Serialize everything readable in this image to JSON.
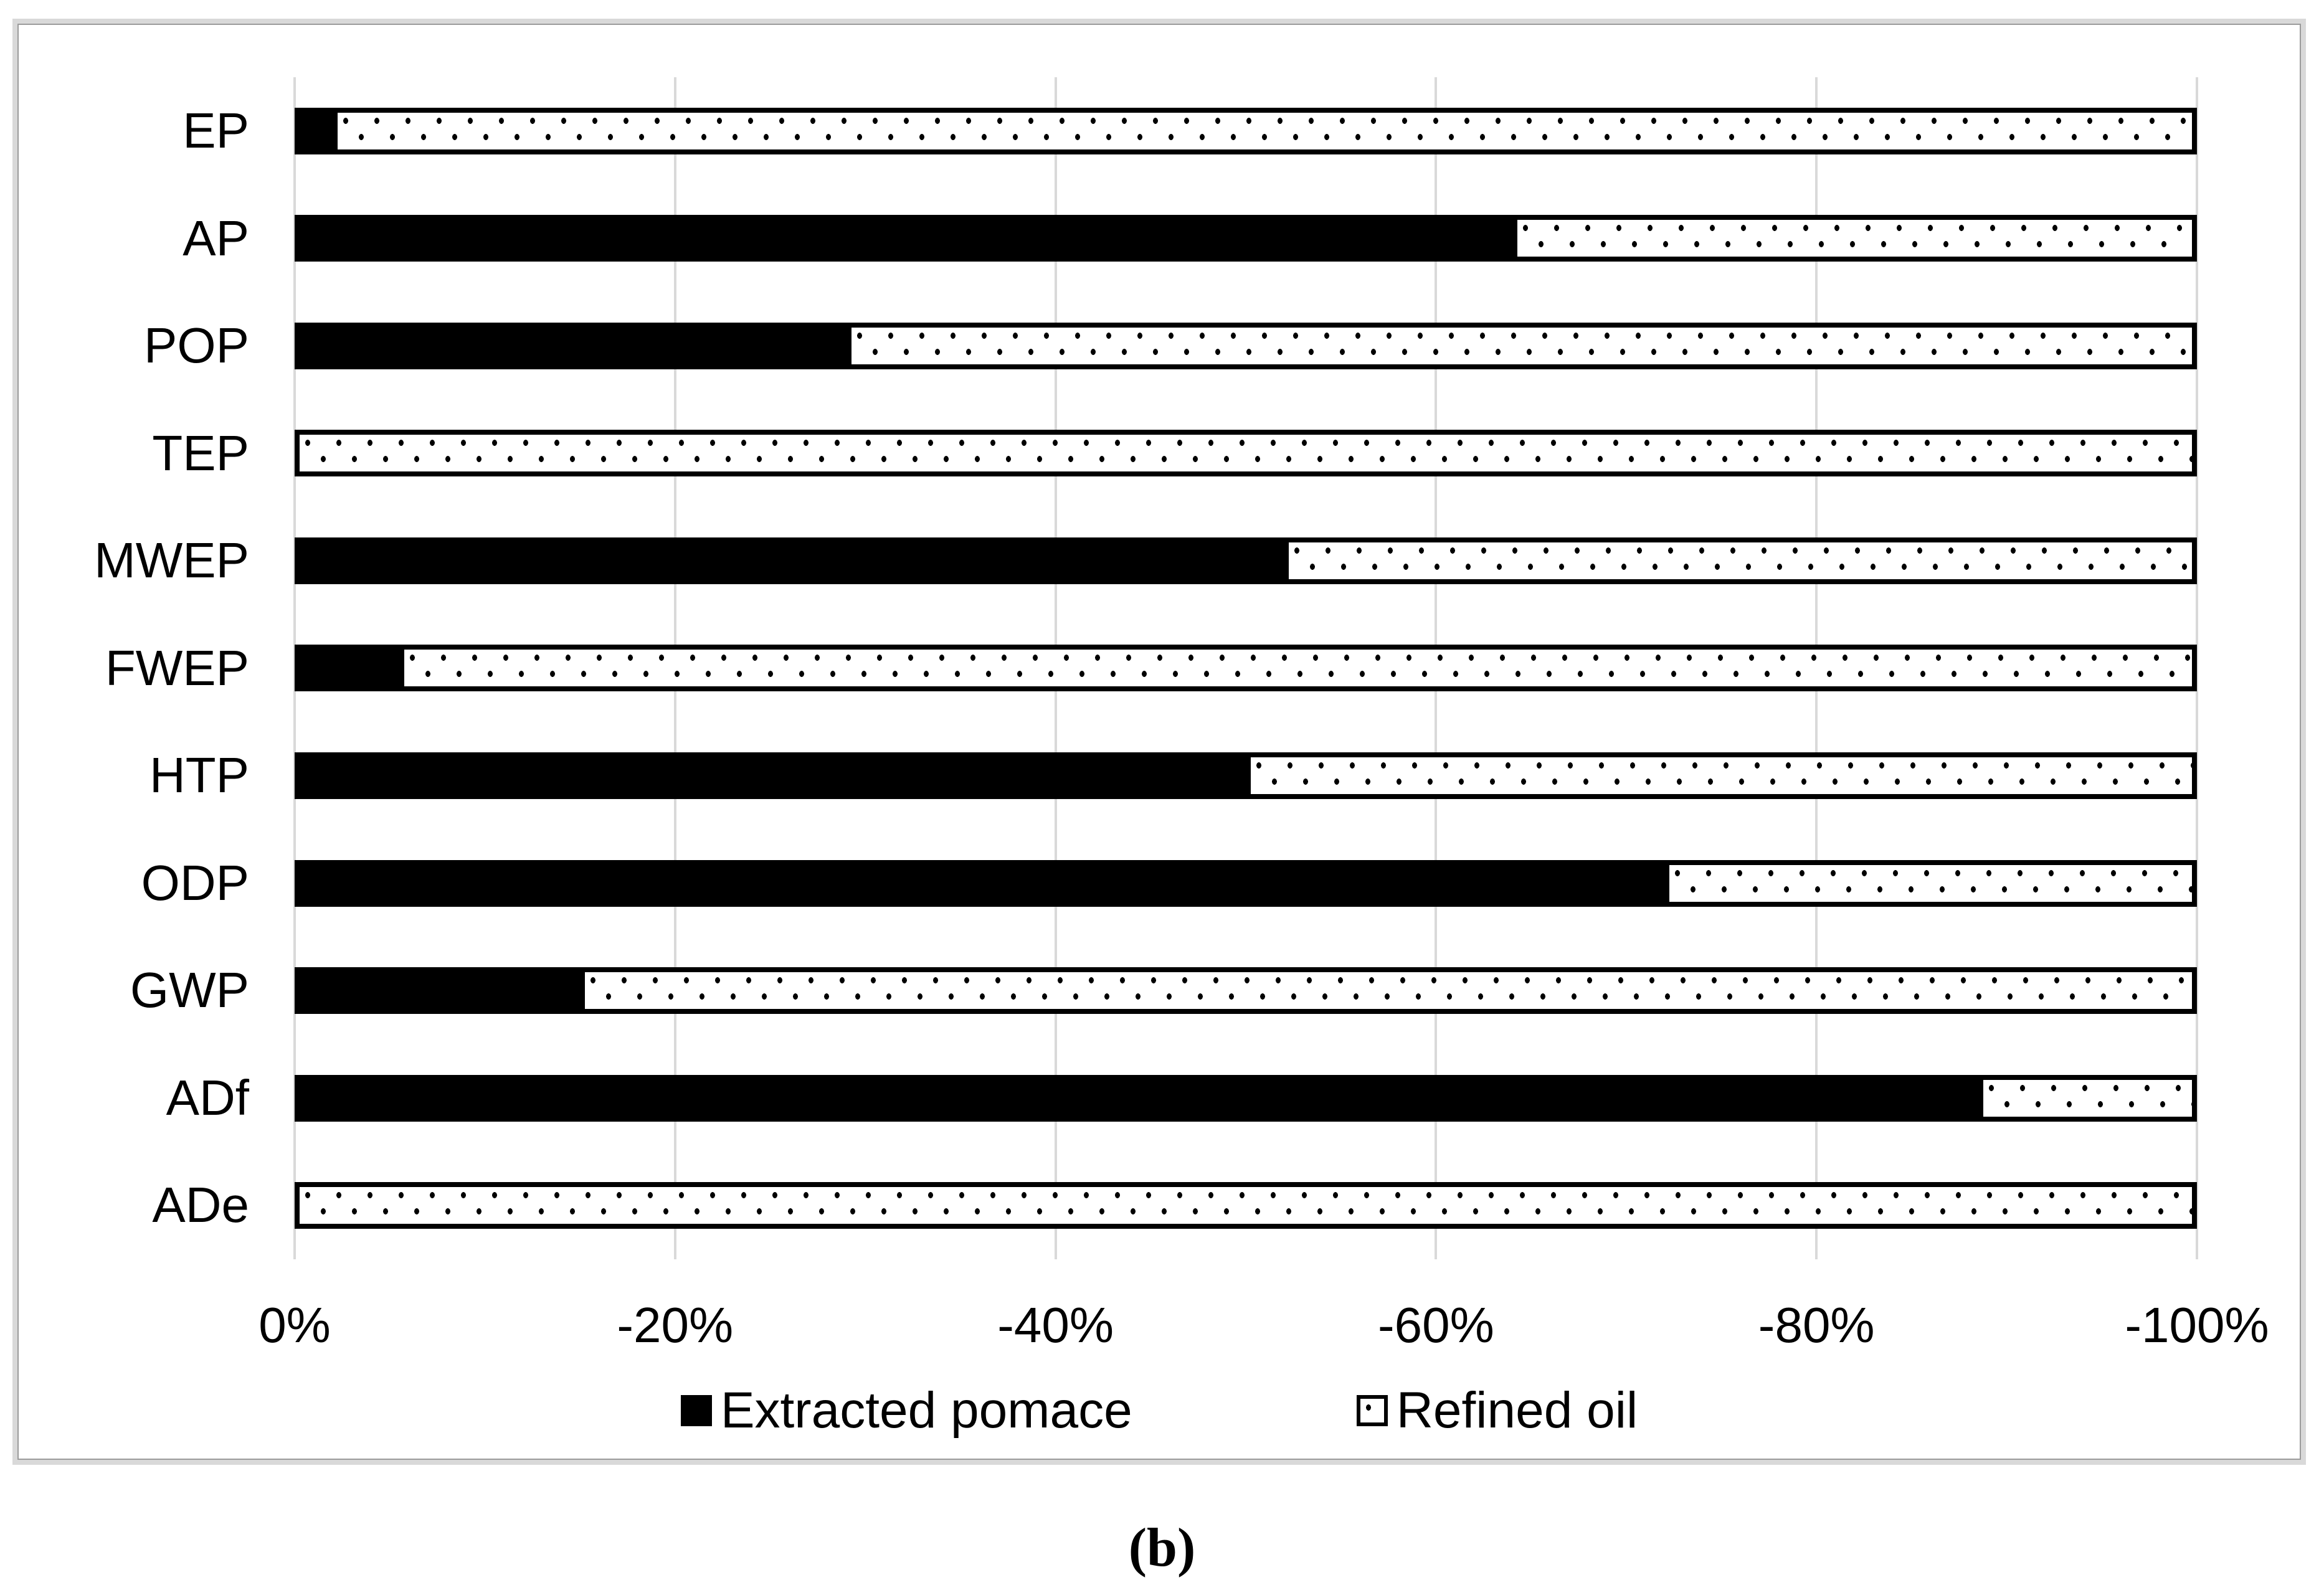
{
  "figure": {
    "caption": "(b)"
  },
  "legend": {
    "items": [
      {
        "label": "Extracted pomace",
        "swatch": "solid-black-square"
      },
      {
        "label": "Refined oil",
        "swatch": "dotted-white-square"
      }
    ]
  },
  "chart_data": {
    "type": "bar",
    "orientation": "horizontal",
    "stacked": true,
    "stacked_total_pct": 100,
    "title": "",
    "categories": [
      "EP",
      "AP",
      "POP",
      "TEP",
      "MWEP",
      "FWEP",
      "HTP",
      "ODP",
      "GWP",
      "ADf",
      "ADe"
    ],
    "series": [
      {
        "name": "Extracted pomace",
        "fill": "solid-black",
        "values_pct": [
          2,
          64,
          29,
          0,
          52,
          5.5,
          50,
          72,
          15,
          88.5,
          0
        ]
      },
      {
        "name": "Refined oil",
        "fill": "white-with-black-dots",
        "values_pct": [
          98,
          36,
          71,
          100,
          48,
          94.5,
          50,
          28,
          85,
          11.5,
          100
        ]
      }
    ],
    "x_axis": {
      "tick_labels": [
        "0%",
        "-20%",
        "-40%",
        "-60%",
        "-80%",
        "-100%"
      ],
      "note": "bars extend from 0% toward -100%; each stacked bar totals 100%"
    },
    "y_axis": {
      "label": ""
    },
    "grid": "vertical-light-gray",
    "legend_position": "bottom-center"
  },
  "colors": {
    "bar_black": "#000000",
    "bar_dotted_bg": "#ffffff",
    "gridline": "#d9d9d9",
    "figure_border": "#d9d9d9",
    "text": "#000000",
    "background": "#ffffff"
  }
}
